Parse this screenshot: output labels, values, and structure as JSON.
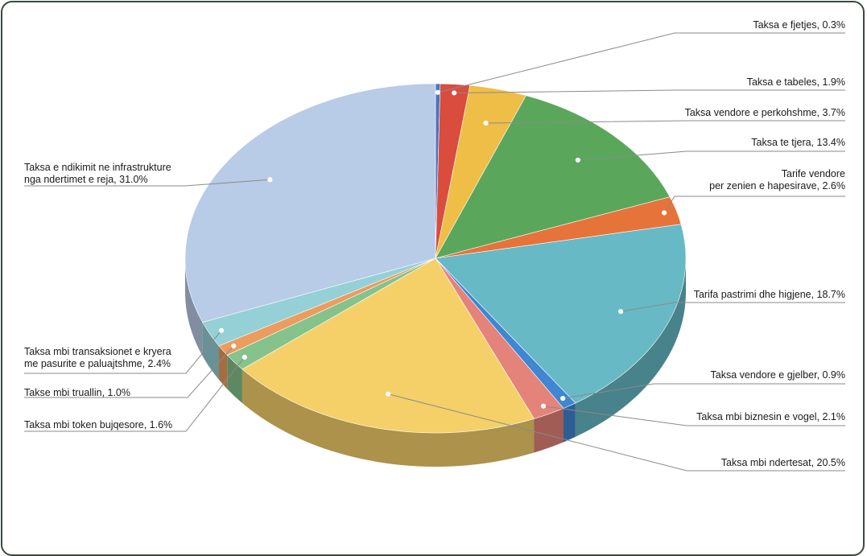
{
  "chart_data": {
    "type": "pie",
    "title": "",
    "legend": "none",
    "slices": [
      {
        "name": "Taksa e fjetjes",
        "value": 0.3,
        "label_lines": [
          "Taksa e fjetjes, 0.3%"
        ],
        "color": "#4a74c0"
      },
      {
        "name": "Taksa e tabeles",
        "value": 1.9,
        "label_lines": [
          "Taksa e tabeles, 1.9%"
        ],
        "color": "#d94c3e"
      },
      {
        "name": "Taksa vendore e perkohshme",
        "value": 3.7,
        "label_lines": [
          "Taksa vendore e perkohshme, 3.7%"
        ],
        "color": "#efbe47"
      },
      {
        "name": "Taksa te tjera",
        "value": 13.4,
        "label_lines": [
          "Taksa te tjera, 13.4%"
        ],
        "color": "#5aa75b"
      },
      {
        "name": "Tarife vendore per zenien e hapesirave",
        "value": 2.6,
        "label_lines": [
          "Tarife vendore",
          "per zenien e hapesirave, 2.6%"
        ],
        "color": "#e6733a"
      },
      {
        "name": "Tarifa pastrimi dhe higjene",
        "value": 18.7,
        "label_lines": [
          "Tarifa pastrimi dhe higjene, 18.7%"
        ],
        "color": "#67b9c5"
      },
      {
        "name": "Taksa vendore e gjelber",
        "value": 0.9,
        "label_lines": [
          "Taksa vendore e gjelber, 0.9%"
        ],
        "color": "#3f86d3"
      },
      {
        "name": "Taksa mbi biznesin e vogel",
        "value": 2.1,
        "label_lines": [
          "Taksa mbi biznesin e vogel, 2.1%"
        ],
        "color": "#e4837a"
      },
      {
        "name": "Taksa mbi ndertesat",
        "value": 20.5,
        "label_lines": [
          "Taksa mbi ndertesat, 20.5%"
        ],
        "color": "#f5d069"
      },
      {
        "name": "Taksa mbi token bujqesore",
        "value": 1.6,
        "label_lines": [
          "Taksa mbi token bujqesore, 1.6%"
        ],
        "color": "#85c28c"
      },
      {
        "name": "Takse mbi truallin",
        "value": 1.0,
        "label_lines": [
          "Takse mbi truallin, 1.0%"
        ],
        "color": "#eb9c5e"
      },
      {
        "name": "Taksa mbi transaksionet e kryera me pasurite e paluajtshme",
        "value": 2.4,
        "label_lines": [
          "Taksa mbi transaksionet e kryera",
          "me pasurite e paluajtshme, 2.4%"
        ],
        "color": "#95d0d6"
      },
      {
        "name": "Taksa e ndikimit ne infrastrukture nga ndertimet e reja",
        "value": 31.0,
        "label_lines": [
          "Taksa e ndikimit ne infrastrukture",
          "nga ndertimet e reja, 31.0%"
        ],
        "color": "#b8cbe7"
      }
    ]
  }
}
